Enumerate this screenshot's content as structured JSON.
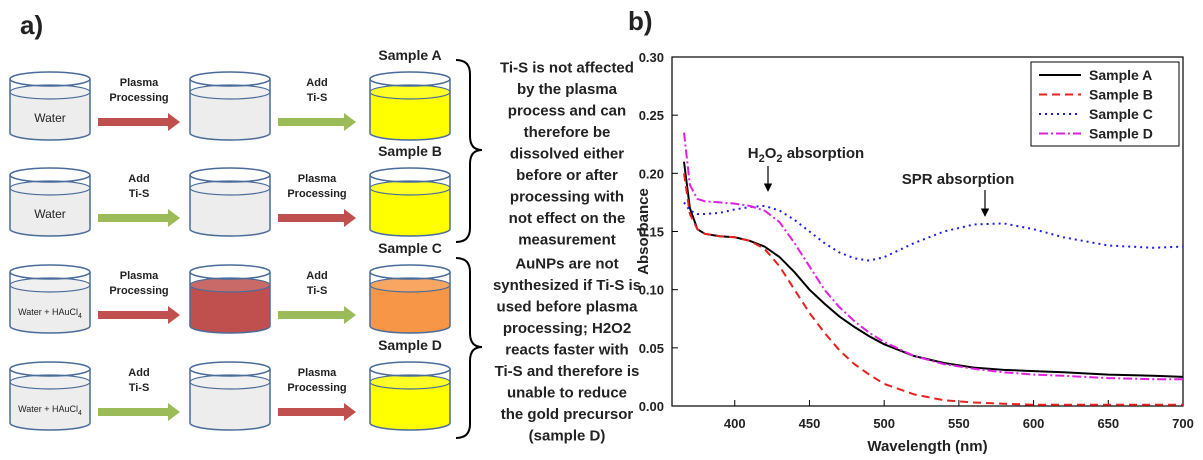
{
  "panel_a": {
    "label": "a)",
    "rows": [
      {
        "sample": "Sample A",
        "start": {
          "text": "Water"
        },
        "arrows": [
          {
            "lines": [
              "Plasma",
              "Processing"
            ],
            "color": "#c0504d"
          },
          {
            "lines": [
              "Add",
              "Ti-S"
            ],
            "color": "#9bbb59"
          }
        ],
        "fills": [
          "#ededed",
          "#ededed",
          "#ffff00"
        ]
      },
      {
        "sample": "Sample B",
        "start": {
          "text": "Water"
        },
        "arrows": [
          {
            "lines": [
              "Add",
              "Ti-S"
            ],
            "color": "#9bbb59"
          },
          {
            "lines": [
              "Plasma",
              "Processing"
            ],
            "color": "#c0504d"
          }
        ],
        "fills": [
          "#ededed",
          "#ededed",
          "#ffff00"
        ]
      },
      {
        "sample": "Sample C",
        "start": {
          "text": "Water + HAuCl",
          "sub": "4"
        },
        "arrows": [
          {
            "lines": [
              "Plasma",
              "Processing"
            ],
            "color": "#c0504d"
          },
          {
            "lines": [
              "Add",
              "Ti-S"
            ],
            "color": "#9bbb59"
          }
        ],
        "fills": [
          "#ededed",
          "#c0504d",
          "#f79646"
        ]
      },
      {
        "sample": "Sample D",
        "start": {
          "text": "Water + HAuCl",
          "sub": "4"
        },
        "arrows": [
          {
            "lines": [
              "Add",
              "Ti-S"
            ],
            "color": "#9bbb59"
          },
          {
            "lines": [
              "Plasma",
              "Processing"
            ],
            "color": "#c0504d"
          }
        ],
        "fills": [
          "#ededed",
          "#ededed",
          "#ffff00"
        ]
      }
    ],
    "notes": [
      {
        "lines": [
          "Ti-S is not affected",
          "by the plasma",
          "process and can",
          "therefore be",
          "dissolved either",
          "before or after",
          "processing with",
          "not effect on the",
          "measurement"
        ]
      },
      {
        "lines": [
          "AuNPs are not",
          "synthesized if Ti-S is",
          "used before plasma",
          "processing; H2O2",
          "reacts faster with",
          "Ti-S and therefore is",
          "unable to reduce",
          "the gold precursor",
          "(sample D)"
        ]
      }
    ]
  },
  "chart_data": {
    "type": "line",
    "label": "b)",
    "x_label": "Wavelength (nm)",
    "y_label": "Absorbance",
    "x": [
      366,
      370,
      375,
      380,
      390,
      400,
      410,
      420,
      430,
      440,
      450,
      460,
      470,
      480,
      490,
      500,
      520,
      540,
      560,
      580,
      600,
      620,
      650,
      680,
      700
    ],
    "series": [
      {
        "name": "Sample A",
        "color": "#000000",
        "style": "solid",
        "values": [
          0.21,
          0.17,
          0.152,
          0.148,
          0.146,
          0.145,
          0.142,
          0.137,
          0.128,
          0.115,
          0.1,
          0.088,
          0.077,
          0.068,
          0.06,
          0.053,
          0.043,
          0.037,
          0.033,
          0.031,
          0.03,
          0.029,
          0.027,
          0.026,
          0.025
        ]
      },
      {
        "name": "Sample B",
        "color": "#e8201e",
        "style": "dashed",
        "values": [
          0.2,
          0.165,
          0.152,
          0.148,
          0.146,
          0.145,
          0.142,
          0.135,
          0.12,
          0.1,
          0.08,
          0.063,
          0.048,
          0.036,
          0.027,
          0.019,
          0.01,
          0.005,
          0.003,
          0.002,
          0.001,
          0.001,
          0.001,
          0.001,
          0.001
        ]
      },
      {
        "name": "Sample C",
        "color": "#1c1cf0",
        "style": "dotted",
        "values": [
          0.175,
          0.168,
          0.165,
          0.165,
          0.166,
          0.169,
          0.171,
          0.172,
          0.168,
          0.16,
          0.15,
          0.14,
          0.132,
          0.127,
          0.125,
          0.128,
          0.14,
          0.15,
          0.156,
          0.157,
          0.152,
          0.145,
          0.138,
          0.136,
          0.137
        ]
      },
      {
        "name": "Sample D",
        "color": "#e020e0",
        "style": "dashdot",
        "values": [
          0.235,
          0.19,
          0.178,
          0.176,
          0.175,
          0.174,
          0.172,
          0.168,
          0.158,
          0.14,
          0.12,
          0.1,
          0.085,
          0.073,
          0.063,
          0.055,
          0.043,
          0.036,
          0.032,
          0.029,
          0.027,
          0.026,
          0.024,
          0.023,
          0.023
        ]
      }
    ],
    "xlim": [
      358,
      700
    ],
    "xticks": [
      400,
      450,
      500,
      550,
      600,
      650,
      700
    ],
    "ylim": [
      0,
      0.3
    ],
    "yticks": [
      {
        "value": 0,
        "label": "0.00"
      },
      0.05,
      {
        "value": 0.1,
        "label": "0.10"
      },
      0.15,
      {
        "value": 0.2,
        "label": "0.20"
      },
      0.25,
      {
        "value": 0.3,
        "label": "0.30"
      }
    ],
    "legend": "upper right",
    "annotations": [
      {
        "parts": [
          {
            "text": "H"
          },
          {
            "sub": "2"
          },
          {
            "text": "O"
          },
          {
            "sub": "2"
          },
          {
            "text": " absorption"
          }
        ]
      },
      {
        "parts": [
          {
            "text": "SPR absorption"
          }
        ]
      }
    ]
  }
}
